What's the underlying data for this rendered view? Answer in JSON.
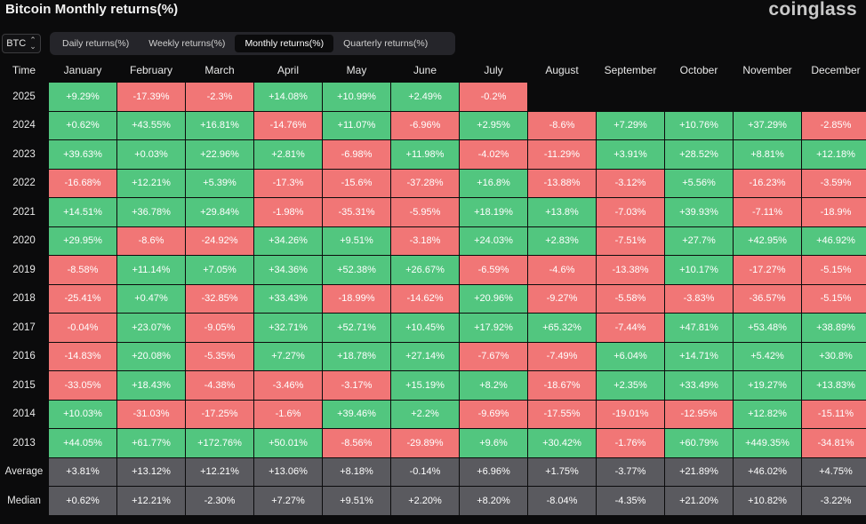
{
  "header": {
    "title": "Bitcoin Monthly returns(%)",
    "brand": "coinglass"
  },
  "asset_select": {
    "value": "BTC"
  },
  "tabs": [
    {
      "label": "Daily returns(%)",
      "active": false
    },
    {
      "label": "Weekly returns(%)",
      "active": false
    },
    {
      "label": "Monthly returns(%)",
      "active": true
    },
    {
      "label": "Quarterly returns(%)",
      "active": false
    }
  ],
  "table": {
    "corner_label": "Time",
    "columns": [
      "January",
      "February",
      "March",
      "April",
      "May",
      "June",
      "July",
      "August",
      "September",
      "October",
      "November",
      "December"
    ],
    "rows": [
      {
        "year": "2025",
        "values": [
          "+9.29%",
          "-17.39%",
          "-2.3%",
          "+14.08%",
          "+10.99%",
          "+2.49%",
          "-0.2%",
          "",
          "",
          "",
          "",
          ""
        ]
      },
      {
        "year": "2024",
        "values": [
          "+0.62%",
          "+43.55%",
          "+16.81%",
          "-14.76%",
          "+11.07%",
          "-6.96%",
          "+2.95%",
          "-8.6%",
          "+7.29%",
          "+10.76%",
          "+37.29%",
          "-2.85%"
        ]
      },
      {
        "year": "2023",
        "values": [
          "+39.63%",
          "+0.03%",
          "+22.96%",
          "+2.81%",
          "-6.98%",
          "+11.98%",
          "-4.02%",
          "-11.29%",
          "+3.91%",
          "+28.52%",
          "+8.81%",
          "+12.18%"
        ]
      },
      {
        "year": "2022",
        "values": [
          "-16.68%",
          "+12.21%",
          "+5.39%",
          "-17.3%",
          "-15.6%",
          "-37.28%",
          "+16.8%",
          "-13.88%",
          "-3.12%",
          "+5.56%",
          "-16.23%",
          "-3.59%"
        ]
      },
      {
        "year": "2021",
        "values": [
          "+14.51%",
          "+36.78%",
          "+29.84%",
          "-1.98%",
          "-35.31%",
          "-5.95%",
          "+18.19%",
          "+13.8%",
          "-7.03%",
          "+39.93%",
          "-7.11%",
          "-18.9%"
        ]
      },
      {
        "year": "2020",
        "values": [
          "+29.95%",
          "-8.6%",
          "-24.92%",
          "+34.26%",
          "+9.51%",
          "-3.18%",
          "+24.03%",
          "+2.83%",
          "-7.51%",
          "+27.7%",
          "+42.95%",
          "+46.92%"
        ]
      },
      {
        "year": "2019",
        "values": [
          "-8.58%",
          "+11.14%",
          "+7.05%",
          "+34.36%",
          "+52.38%",
          "+26.67%",
          "-6.59%",
          "-4.6%",
          "-13.38%",
          "+10.17%",
          "-17.27%",
          "-5.15%"
        ]
      },
      {
        "year": "2018",
        "values": [
          "-25.41%",
          "+0.47%",
          "-32.85%",
          "+33.43%",
          "-18.99%",
          "-14.62%",
          "+20.96%",
          "-9.27%",
          "-5.58%",
          "-3.83%",
          "-36.57%",
          "-5.15%"
        ]
      },
      {
        "year": "2017",
        "values": [
          "-0.04%",
          "+23.07%",
          "-9.05%",
          "+32.71%",
          "+52.71%",
          "+10.45%",
          "+17.92%",
          "+65.32%",
          "-7.44%",
          "+47.81%",
          "+53.48%",
          "+38.89%"
        ]
      },
      {
        "year": "2016",
        "values": [
          "-14.83%",
          "+20.08%",
          "-5.35%",
          "+7.27%",
          "+18.78%",
          "+27.14%",
          "-7.67%",
          "-7.49%",
          "+6.04%",
          "+14.71%",
          "+5.42%",
          "+30.8%"
        ]
      },
      {
        "year": "2015",
        "values": [
          "-33.05%",
          "+18.43%",
          "-4.38%",
          "-3.46%",
          "-3.17%",
          "+15.19%",
          "+8.2%",
          "-18.67%",
          "+2.35%",
          "+33.49%",
          "+19.27%",
          "+13.83%"
        ]
      },
      {
        "year": "2014",
        "values": [
          "+10.03%",
          "-31.03%",
          "-17.25%",
          "-1.6%",
          "+39.46%",
          "+2.2%",
          "-9.69%",
          "-17.55%",
          "-19.01%",
          "-12.95%",
          "+12.82%",
          "-15.11%"
        ]
      },
      {
        "year": "2013",
        "values": [
          "+44.05%",
          "+61.77%",
          "+172.76%",
          "+50.01%",
          "-8.56%",
          "-29.89%",
          "+9.6%",
          "+30.42%",
          "-1.76%",
          "+60.79%",
          "+449.35%",
          "-34.81%"
        ]
      }
    ],
    "summary_rows": [
      {
        "label": "Average",
        "values": [
          "+3.81%",
          "+13.12%",
          "+12.21%",
          "+13.06%",
          "+8.18%",
          "-0.14%",
          "+6.96%",
          "+1.75%",
          "-3.77%",
          "+21.89%",
          "+46.02%",
          "+4.75%"
        ]
      },
      {
        "label": "Median",
        "values": [
          "+0.62%",
          "+12.21%",
          "-2.30%",
          "+7.27%",
          "+9.51%",
          "+2.20%",
          "+8.20%",
          "-8.04%",
          "-4.35%",
          "+21.20%",
          "+10.82%",
          "-3.22%"
        ]
      }
    ]
  },
  "colors": {
    "positive": "#52c67f",
    "negative": "#f17676",
    "summary": "#5a5a5f",
    "background": "#0b0b0c"
  }
}
